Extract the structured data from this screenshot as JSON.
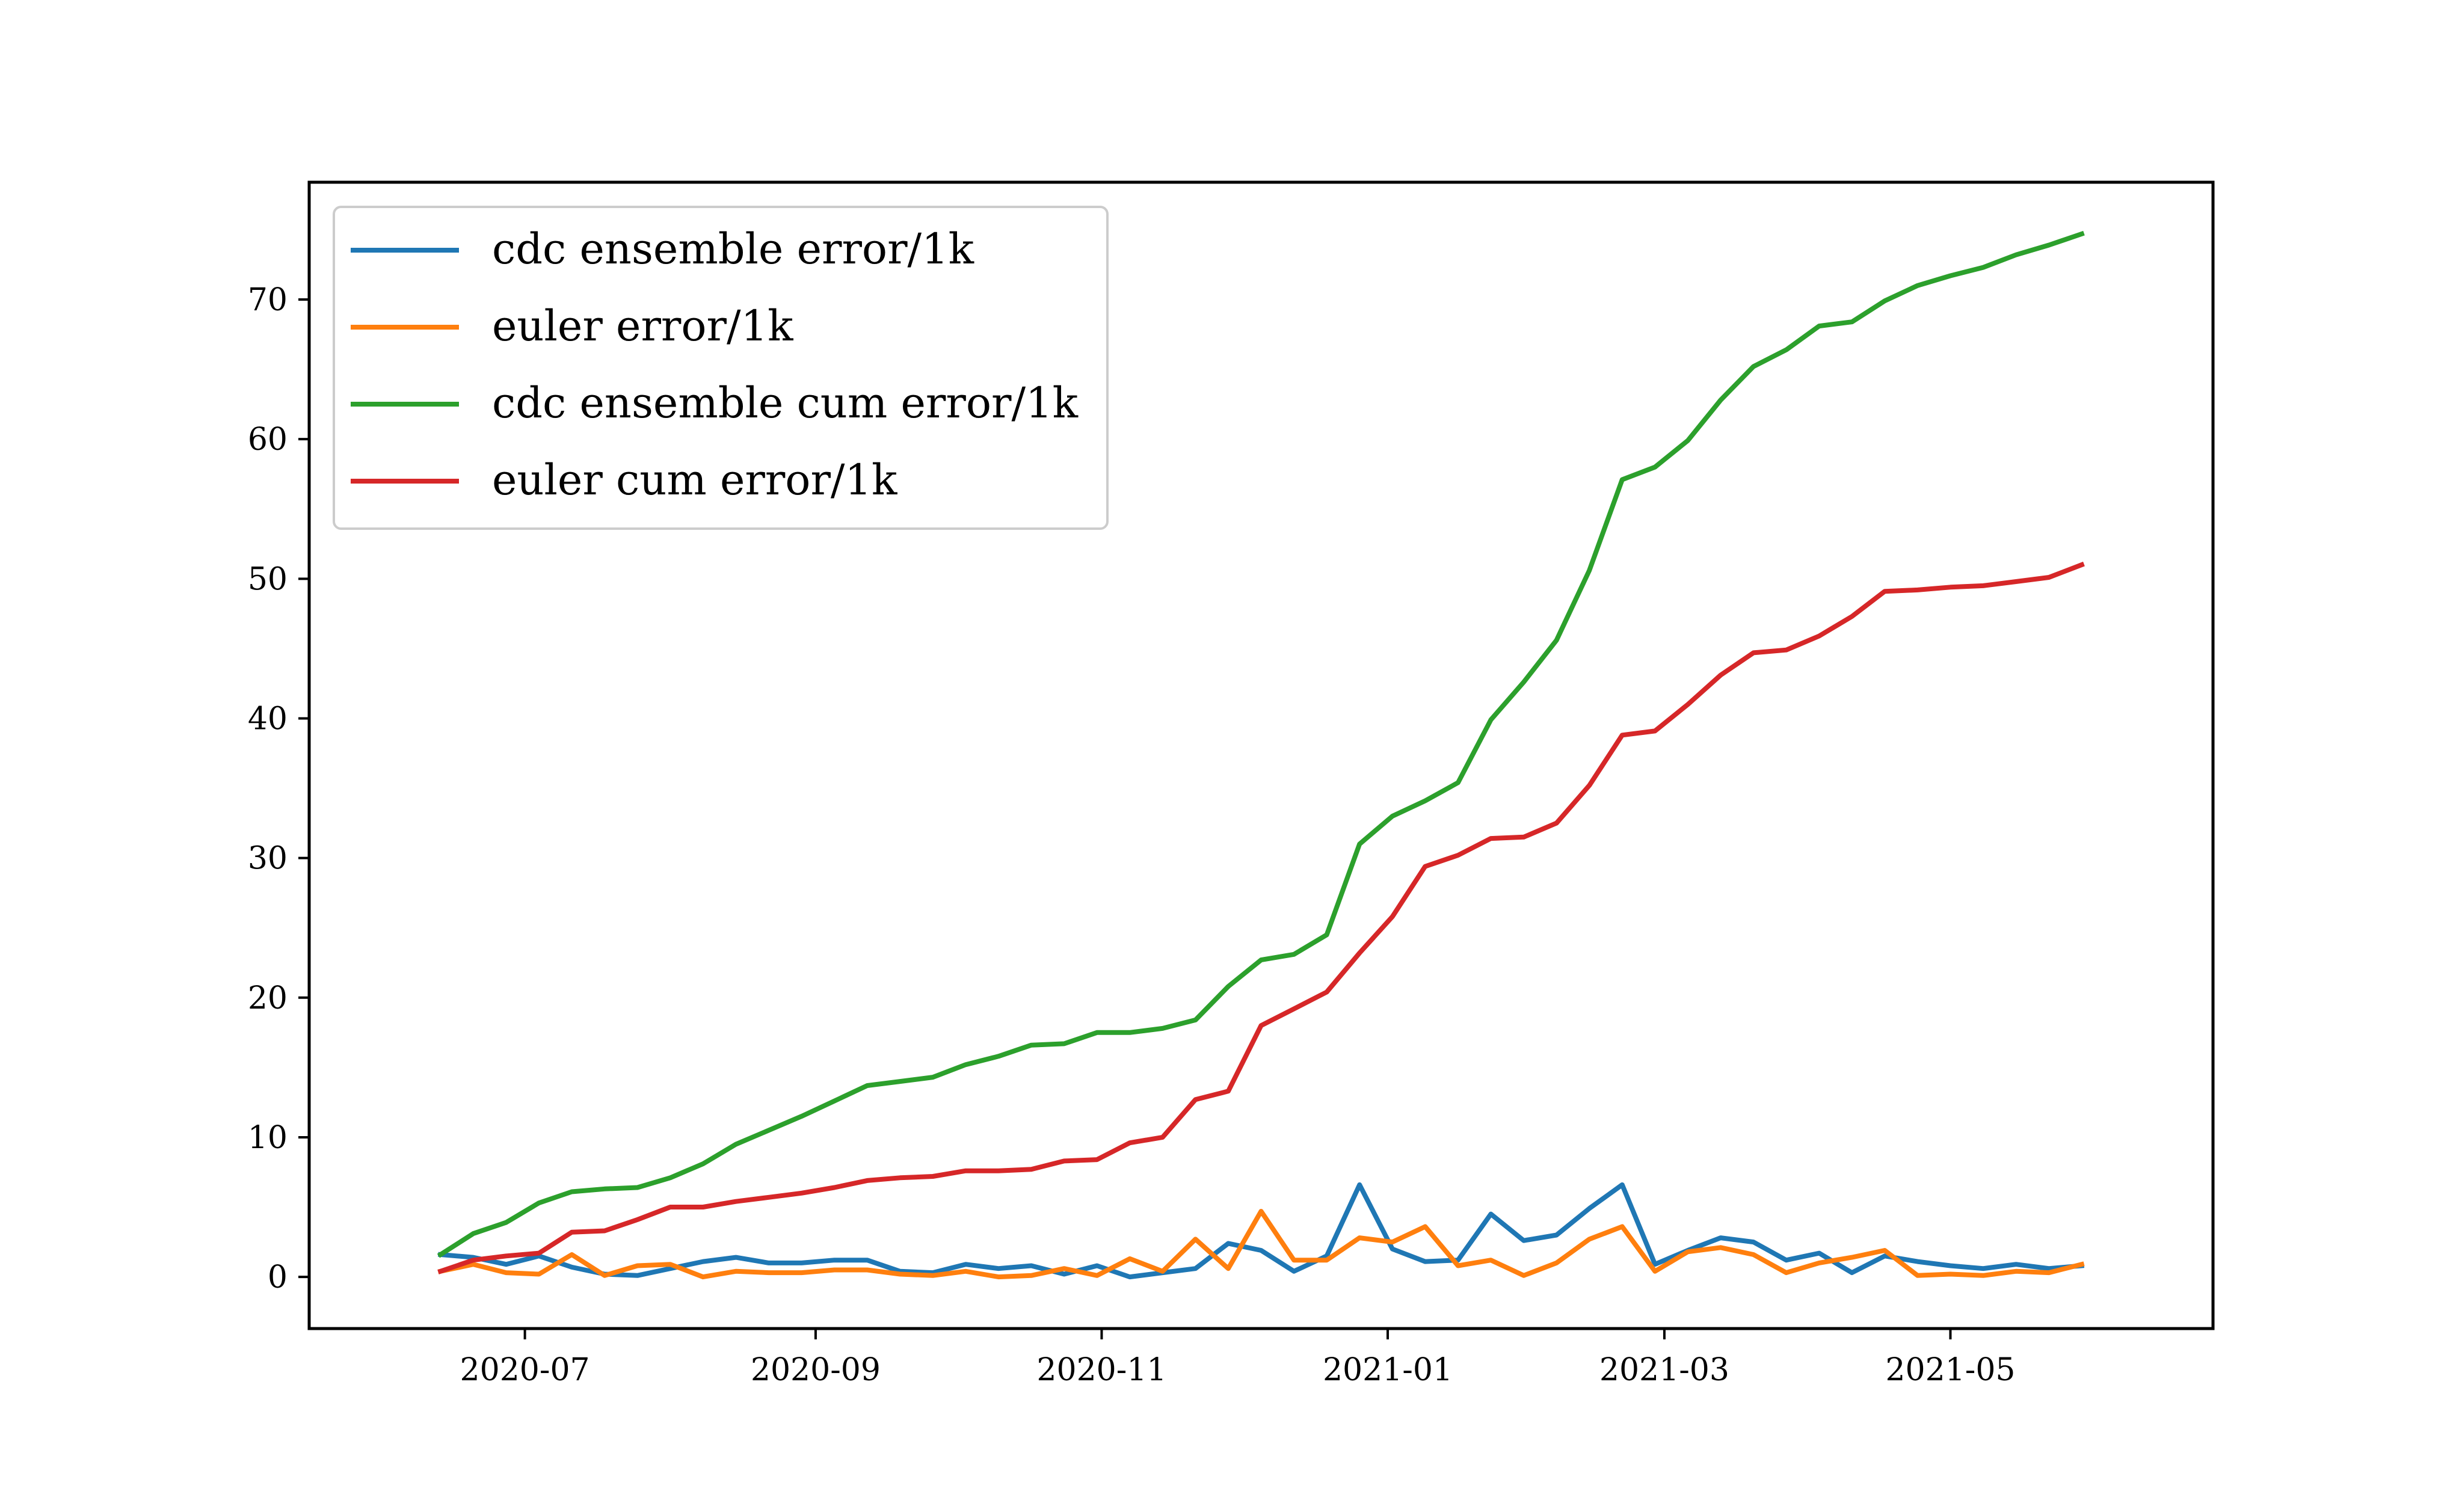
{
  "chart_data": {
    "type": "line",
    "x": [
      "2020-06-13",
      "2020-06-20",
      "2020-06-27",
      "2020-07-04",
      "2020-07-11",
      "2020-07-18",
      "2020-07-25",
      "2020-08-01",
      "2020-08-08",
      "2020-08-15",
      "2020-08-22",
      "2020-08-29",
      "2020-09-05",
      "2020-09-12",
      "2020-09-19",
      "2020-09-26",
      "2020-10-03",
      "2020-10-10",
      "2020-10-17",
      "2020-10-24",
      "2020-10-31",
      "2020-11-07",
      "2020-11-14",
      "2020-11-21",
      "2020-11-28",
      "2020-12-05",
      "2020-12-12",
      "2020-12-19",
      "2020-12-26",
      "2021-01-02",
      "2021-01-09",
      "2021-01-16",
      "2021-01-23",
      "2021-01-30",
      "2021-02-06",
      "2021-02-13",
      "2021-02-20",
      "2021-02-27",
      "2021-03-06",
      "2021-03-13",
      "2021-03-20",
      "2021-03-27",
      "2021-04-03",
      "2021-04-10",
      "2021-04-17",
      "2021-04-24",
      "2021-05-01",
      "2021-05-08",
      "2021-05-15",
      "2021-05-22",
      "2021-05-29"
    ],
    "series": [
      {
        "name": "cdc ensemble error/1k",
        "color": "#1f77b4",
        "values": [
          1.6,
          1.4,
          0.9,
          1.5,
          0.7,
          0.2,
          0.1,
          0.6,
          1.1,
          1.4,
          1.0,
          1.0,
          1.2,
          1.2,
          0.4,
          0.3,
          0.9,
          0.6,
          0.8,
          0.2,
          0.8,
          0.0,
          0.3,
          0.6,
          2.4,
          1.9,
          0.4,
          1.5,
          6.6,
          2.0,
          1.1,
          1.2,
          4.5,
          2.6,
          3.0,
          4.9,
          6.6,
          0.9,
          1.9,
          2.8,
          2.5,
          1.2,
          1.7,
          0.3,
          1.5,
          1.1,
          0.8,
          0.6,
          0.9,
          0.6,
          0.8
        ]
      },
      {
        "name": "euler error/1k",
        "color": "#ff7f0e",
        "values": [
          0.4,
          0.9,
          0.3,
          0.2,
          1.6,
          0.1,
          0.8,
          0.9,
          0.0,
          0.4,
          0.3,
          0.3,
          0.5,
          0.5,
          0.2,
          0.1,
          0.4,
          0.0,
          0.1,
          0.6,
          0.1,
          1.3,
          0.4,
          2.7,
          0.6,
          4.7,
          1.2,
          1.2,
          2.8,
          2.5,
          3.6,
          0.8,
          1.2,
          0.1,
          1.0,
          2.7,
          3.6,
          0.4,
          1.8,
          2.1,
          1.6,
          0.3,
          1.0,
          1.4,
          1.9,
          0.1,
          0.2,
          0.1,
          0.4,
          0.3,
          0.9
        ]
      },
      {
        "name": "cdc ensemble cum error/1k",
        "color": "#2ca02c",
        "values": [
          1.6,
          3.1,
          3.9,
          5.3,
          6.1,
          6.3,
          6.4,
          7.1,
          8.1,
          9.5,
          10.5,
          11.5,
          12.6,
          13.7,
          14.0,
          14.3,
          15.2,
          15.8,
          16.6,
          16.7,
          17.5,
          17.5,
          17.8,
          18.4,
          20.8,
          22.7,
          23.1,
          24.5,
          31.0,
          33.0,
          34.1,
          35.4,
          39.9,
          42.6,
          45.6,
          50.6,
          57.1,
          58.0,
          59.9,
          62.8,
          65.2,
          66.4,
          68.1,
          68.4,
          69.9,
          71.0,
          71.7,
          72.3,
          73.2,
          73.9,
          74.7
        ]
      },
      {
        "name": "euler cum error/1k",
        "color": "#d62728",
        "values": [
          0.4,
          1.2,
          1.5,
          1.7,
          3.2,
          3.3,
          4.1,
          5.0,
          5.0,
          5.4,
          5.7,
          6.0,
          6.4,
          6.9,
          7.1,
          7.2,
          7.6,
          7.6,
          7.7,
          8.3,
          8.4,
          9.6,
          10.0,
          12.7,
          13.3,
          18.0,
          19.2,
          20.4,
          23.2,
          25.8,
          29.4,
          30.2,
          31.4,
          31.5,
          32.5,
          35.2,
          38.8,
          39.1,
          41.0,
          43.1,
          44.7,
          44.9,
          45.9,
          47.3,
          49.1,
          49.2,
          49.4,
          49.5,
          49.8,
          50.1,
          51.0
        ]
      }
    ],
    "x_ticks": [
      {
        "date": "2020-07-01",
        "label": "2020-07"
      },
      {
        "date": "2020-09-01",
        "label": "2020-09"
      },
      {
        "date": "2020-11-01",
        "label": "2020-11"
      },
      {
        "date": "2021-01-01",
        "label": "2021-01"
      },
      {
        "date": "2021-03-01",
        "label": "2021-03"
      },
      {
        "date": "2021-05-01",
        "label": "2021-05"
      }
    ],
    "y_ticks": [
      0,
      10,
      20,
      30,
      40,
      50,
      60,
      70
    ],
    "xlim": [
      "2020-05-16",
      "2021-06-26"
    ],
    "ylim": [
      -3.7,
      78.4
    ],
    "title": "",
    "xlabel": "",
    "ylabel": "",
    "grid": false,
    "legend_position": "upper-left"
  }
}
